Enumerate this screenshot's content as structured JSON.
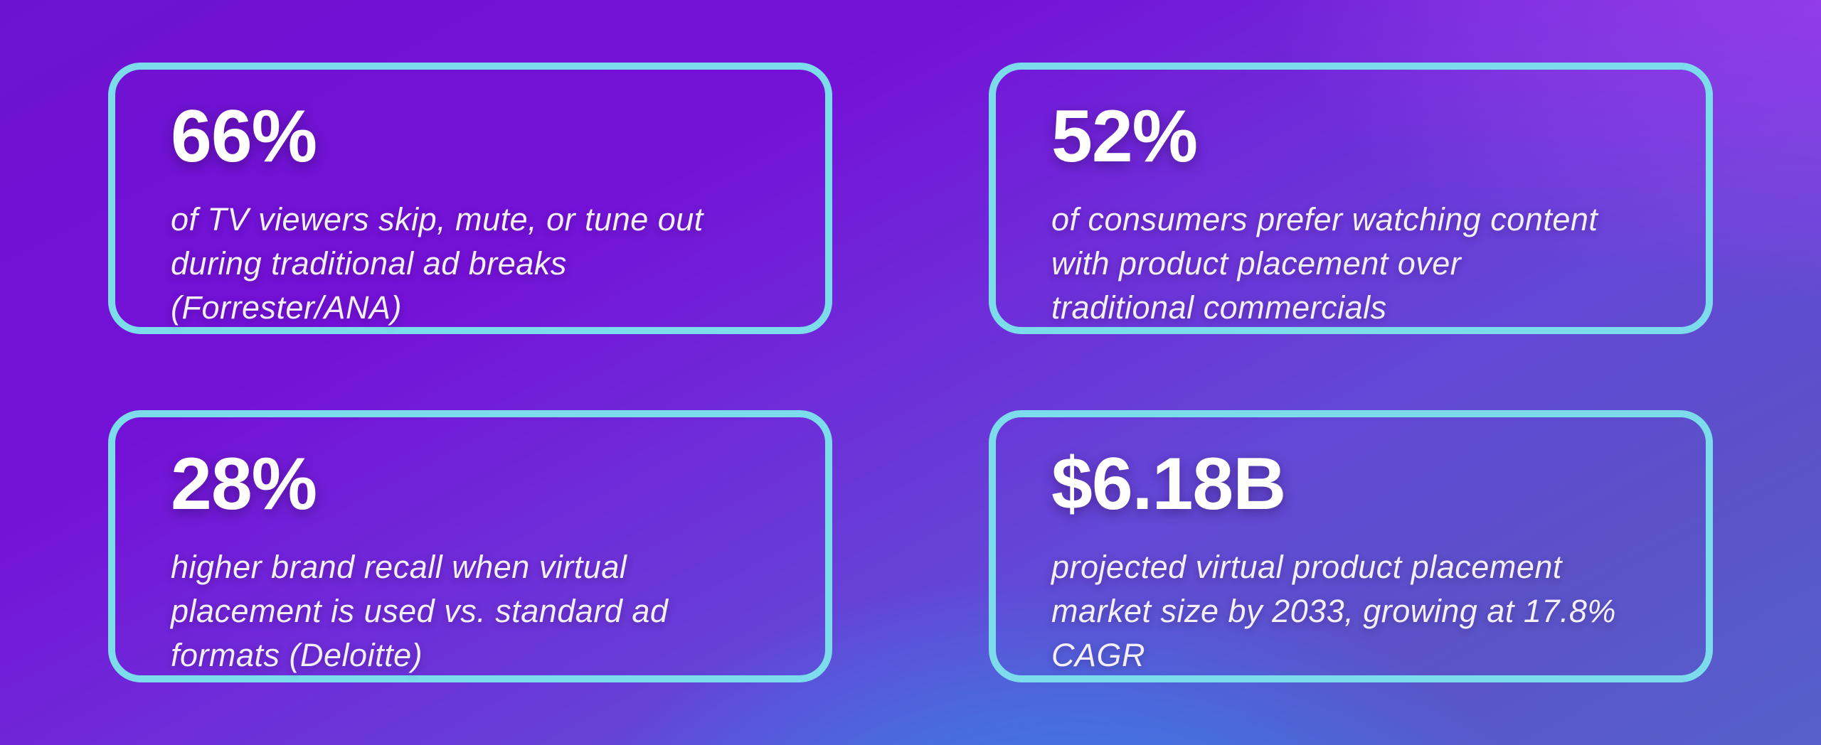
{
  "theme": {
    "card_border_color": "#7cdcec",
    "text_color": "#f3effb",
    "value_color": "#ffffff",
    "background_gradient": {
      "top_left": "#6d13d0",
      "top_right": "#983ae8",
      "center": "#6e4bde",
      "bottom_left": "#5c52c7",
      "bottom_center": "#3f80e8",
      "bottom_right": "#5560ce"
    }
  },
  "stats": [
    {
      "value": "66%",
      "description": "of TV viewers skip, mute, or tune out\nduring traditional ad breaks\n(Forrester/ANA)"
    },
    {
      "value": "52%",
      "description": "of consumers prefer watching content\nwith product placement over\ntraditional commercials"
    },
    {
      "value": "28%",
      "description": "higher brand recall when virtual\nplacement is used vs. standard ad\nformats (Deloitte)"
    },
    {
      "value": "$6.18B",
      "description": "projected virtual product placement\nmarket size by 2033, growing at 17.8%\nCAGR"
    }
  ]
}
